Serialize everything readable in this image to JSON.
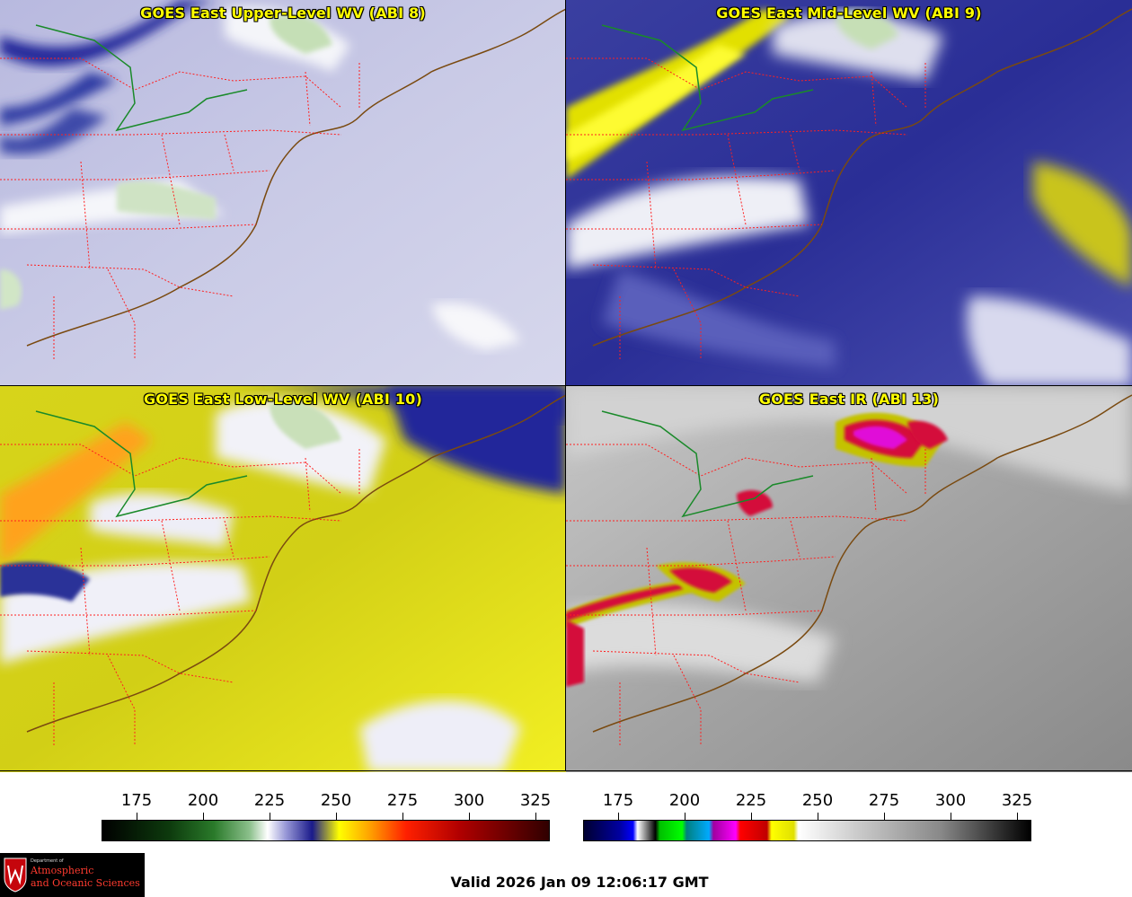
{
  "panels": [
    {
      "title": "GOES East Upper-Level WV (ABI 8)"
    },
    {
      "title": "GOES East Mid-Level WV (ABI 9)"
    },
    {
      "title": "GOES East Low-Level WV (ABI 10)"
    },
    {
      "title": "GOES East IR (ABI 13)"
    }
  ],
  "colorbar_wv": {
    "ticks": [
      "175",
      "200",
      "225",
      "250",
      "275",
      "300",
      "325"
    ]
  },
  "colorbar_ir": {
    "ticks": [
      "175",
      "200",
      "225",
      "250",
      "275",
      "300",
      "325"
    ]
  },
  "logo": {
    "small": "Department of",
    "line1": "Atmospheric",
    "line2": "and Oceanic Sciences"
  },
  "valid_time": "Valid 2026 Jan 09 12:06:17 GMT",
  "colors": {
    "title_text": "#ffff00",
    "state_borders": "#ff2020",
    "coastline": "#7a4a10",
    "lake_boundary": "#1a8a2a"
  }
}
